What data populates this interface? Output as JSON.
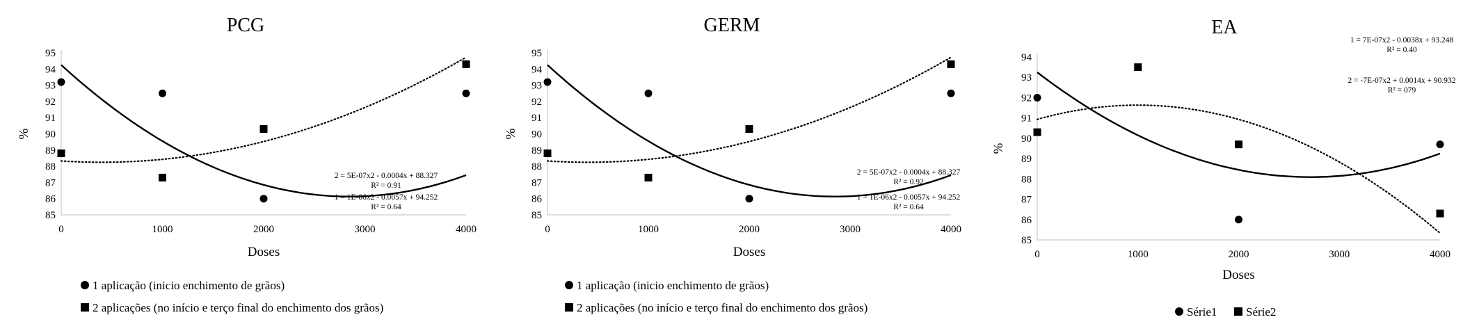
{
  "chart_data": [
    {
      "type": "scatter",
      "title": "PCG",
      "xlabel": "Doses",
      "ylabel": "%",
      "xlim": [
        0,
        4000
      ],
      "ylim": [
        85,
        95
      ],
      "x_ticks": [
        "0",
        "1000",
        "2000",
        "3000",
        "4000"
      ],
      "y_ticks": [
        "85",
        "86",
        "87",
        "88",
        "89",
        "90",
        "91",
        "92",
        "93",
        "94",
        "95"
      ],
      "series": [
        {
          "name": "1 aplicação (inicio enchimento de grãos)",
          "marker": "circle",
          "x": [
            0,
            1000,
            2000,
            4000
          ],
          "y": [
            93.2,
            92.5,
            86.0,
            92.5
          ],
          "trend": {
            "type": "polynomial",
            "style": "solid",
            "coef": [
              1e-06,
              -0.0057,
              94.252
            ]
          }
        },
        {
          "name": "2 aplicações (no início e terço final do enchimento dos grãos)",
          "marker": "square",
          "x": [
            0,
            1000,
            2000,
            4000
          ],
          "y": [
            88.8,
            87.3,
            90.3,
            94.3
          ],
          "trend": {
            "type": "polynomial",
            "style": "dotted",
            "coef": [
              5e-07,
              -0.0004,
              88.327
            ]
          }
        }
      ],
      "annotations": [
        {
          "line1": "2 = 5E-07x2  - 0.0004x + 88.327",
          "line2": "R² = 0.91"
        },
        {
          "line1": "1 = 1E-06x2  - 0.0057x + 94.252",
          "line2": "R² = 0.64"
        }
      ],
      "legend": [
        "1 aplicação (inicio enchimento de grãos)",
        "2 aplicações (no início e terço final do enchimento dos grãos)"
      ],
      "legend_placement": "bottom"
    },
    {
      "type": "scatter",
      "title": "GERM",
      "xlabel": "Doses",
      "ylabel": "%",
      "xlim": [
        0,
        4000
      ],
      "ylim": [
        85,
        95
      ],
      "x_ticks": [
        "0",
        "1000",
        "2000",
        "3000",
        "4000"
      ],
      "y_ticks": [
        "85",
        "86",
        "87",
        "88",
        "89",
        "90",
        "91",
        "92",
        "93",
        "94",
        "95"
      ],
      "series": [
        {
          "name": "1 aplicação (inicio enchimento de grãos)",
          "marker": "circle",
          "x": [
            0,
            1000,
            2000,
            4000
          ],
          "y": [
            93.2,
            92.5,
            86.0,
            92.5
          ],
          "trend": {
            "type": "polynomial",
            "style": "solid",
            "coef": [
              1e-06,
              -0.0057,
              94.252
            ]
          }
        },
        {
          "name": "2 aplicações (no início e terço final do enchimento dos grãos)",
          "marker": "square",
          "x": [
            0,
            1000,
            2000,
            4000
          ],
          "y": [
            88.8,
            87.3,
            90.3,
            94.3
          ],
          "trend": {
            "type": "polynomial",
            "style": "dotted",
            "coef": [
              5e-07,
              -0.0004,
              88.327
            ]
          }
        }
      ],
      "annotations": [
        {
          "line1": "2 = 5E-07x2  - 0.0004x + 88.327",
          "line2": "R² = 0.92"
        },
        {
          "line1": "1 = 1E-06x2  - 0.0057x + 94.252",
          "line2": "R² = 0.64"
        }
      ],
      "legend": [
        "1 aplicação (inicio enchimento de grãos)",
        "2 aplicações (no início e terço final do enchimento dos grãos)"
      ],
      "legend_placement": "bottom"
    },
    {
      "type": "scatter",
      "title": "EA",
      "xlabel": "Doses",
      "ylabel": "%",
      "xlim": [
        0,
        4000
      ],
      "ylim": [
        85,
        94
      ],
      "x_ticks": [
        "0",
        "1000",
        "2000",
        "3000",
        "4000"
      ],
      "y_ticks": [
        "85",
        "86",
        "87",
        "88",
        "89",
        "90",
        "91",
        "92",
        "93",
        "94"
      ],
      "series": [
        {
          "name": "Série1",
          "marker": "circle",
          "x": [
            0,
            2000,
            4000
          ],
          "y": [
            92.0,
            86.0,
            89.7
          ],
          "trend": {
            "type": "polynomial",
            "style": "solid",
            "coef": [
              7e-07,
              -0.0038,
              93.248
            ]
          }
        },
        {
          "name": "Série2",
          "marker": "square",
          "x": [
            0,
            1000,
            2000,
            4000
          ],
          "y": [
            90.3,
            93.5,
            89.7,
            86.3
          ],
          "trend": {
            "type": "polynomial",
            "style": "dotted",
            "coef": [
              -7e-07,
              0.0014,
              90.932
            ]
          }
        }
      ],
      "annotations": [
        {
          "line1": "1 = 7E-07x2  - 0.0038x + 93.248",
          "line2": "R² = 0.40"
        },
        {
          "line1": "2 = -7E-07x2  + 0.0014x + 90.932",
          "line2": "R² = 079"
        }
      ],
      "legend": [
        "Série1",
        "Série2"
      ],
      "legend_placement": "bottom"
    }
  ]
}
